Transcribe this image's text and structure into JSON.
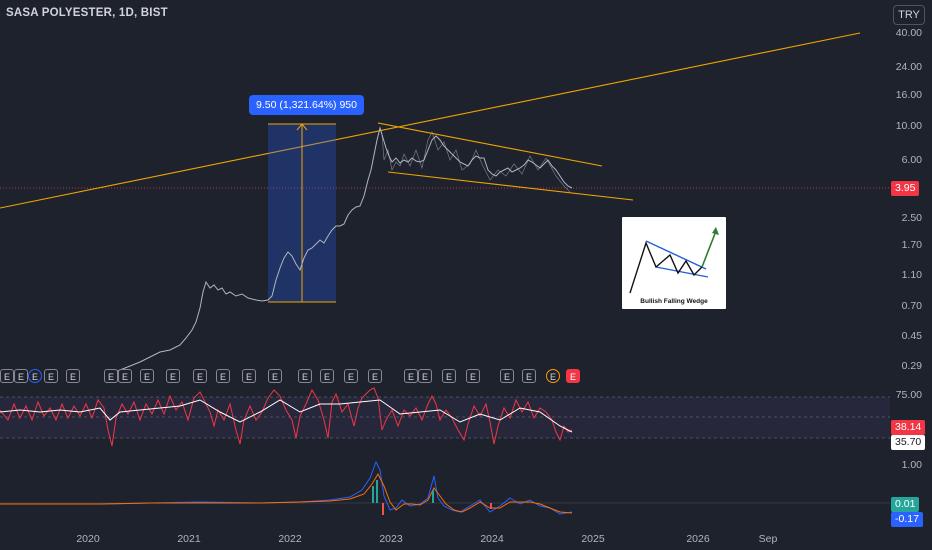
{
  "header": {
    "title": "SASA POLYESTER, 1D, BIST",
    "currency": "TRY"
  },
  "price_axis": {
    "ticks": [
      "40.00",
      "24.00",
      "16.00",
      "10.00",
      "6.00",
      "3.95",
      "2.50",
      "1.70",
      "1.10",
      "0.70",
      "0.45",
      "0.29"
    ]
  },
  "current_price": {
    "label": "3.95",
    "color": "#f23645"
  },
  "measure": {
    "label": "9.50 (1,321.64%) 950"
  },
  "inset": {
    "caption": "Bullish Falling Wedge"
  },
  "rsi_axis": {
    "ticks": [
      "75.00"
    ],
    "value_label": "38.14",
    "ma_label": "35.70"
  },
  "macd_axis": {
    "ticks": [
      "1.00"
    ],
    "value_label": "0.01",
    "signal_label": "-0.17"
  },
  "time_axis": {
    "ticks": [
      "2020",
      "2021",
      "2022",
      "2023",
      "2024",
      "2025",
      "2026",
      "Sep"
    ]
  },
  "events": {
    "labels": [
      "E",
      "E",
      "E",
      "E",
      "E",
      "E",
      "E",
      "E",
      "E",
      "E",
      "E",
      "E",
      "E",
      "E",
      "E",
      "E",
      "E",
      "E",
      "E",
      "E",
      "E",
      "E",
      "E",
      "E",
      "E",
      "E",
      "E"
    ]
  },
  "colors": {
    "background": "#1e222d",
    "price_line": "#b2b5be",
    "trendline": "#f0a500",
    "measure_box": "#2962ff",
    "rsi_line": "#f23645",
    "rsi_ma": "#ffffff",
    "macd": "#2962ff",
    "signal": "#ff6d00"
  }
}
